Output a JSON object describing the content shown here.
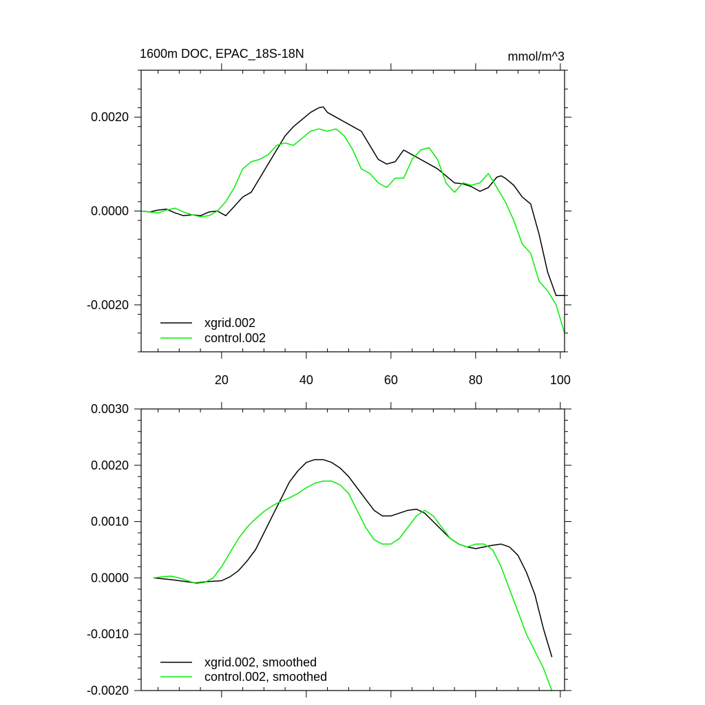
{
  "chart_data": [
    {
      "type": "line",
      "title": "1600m DOC, EPAC_18S-18N",
      "units": "mmol/m^3",
      "xlabel": "",
      "ylabel": "",
      "xlim": [
        1,
        101
      ],
      "ylim": [
        -0.003,
        0.003
      ],
      "xticks": [
        20,
        40,
        60,
        80,
        100
      ],
      "yticks": [
        -0.002,
        0.0,
        0.002
      ],
      "ytick_labels": [
        "-0.0020",
        "0.0000",
        "0.0020"
      ],
      "legend_position": "bottom-left",
      "series": [
        {
          "name": "xgrid.002",
          "color": "#000000",
          "x": [
            1,
            3,
            5,
            7,
            9,
            11,
            13,
            15,
            17,
            19,
            21,
            23,
            25,
            27,
            29,
            31,
            33,
            35,
            37,
            39,
            41,
            43,
            44,
            45,
            47,
            49,
            51,
            53,
            55,
            57,
            59,
            61,
            63,
            65,
            67,
            69,
            71,
            73,
            75,
            77,
            79,
            81,
            83,
            85,
            86,
            87,
            89,
            91,
            93,
            95,
            97,
            99,
            101
          ],
          "y": [
            0,
            -2e-05,
            2e-05,
            4e-05,
            -4e-05,
            -0.0001,
            -8e-05,
            -0.0001,
            -2e-05,
            0,
            -0.0001,
            0.0001,
            0.0003,
            0.0004,
            0.0007,
            0.001,
            0.0013,
            0.0016,
            0.0018,
            0.00195,
            0.0021,
            0.0022,
            0.00222,
            0.0021,
            0.002,
            0.0019,
            0.0018,
            0.0017,
            0.0014,
            0.0011,
            0.001,
            0.00105,
            0.0013,
            0.0012,
            0.0011,
            0.001,
            0.0009,
            0.00075,
            0.0006,
            0.00058,
            0.00052,
            0.00042,
            0.0005,
            0.00072,
            0.00075,
            0.0007,
            0.00055,
            0.0003,
            0.00015,
            -0.0005,
            -0.0013,
            -0.0018,
            -0.0018
          ]
        },
        {
          "name": "control.002",
          "color": "#00ee00",
          "x": [
            1,
            3,
            5,
            7,
            9,
            11,
            13,
            15,
            17,
            19,
            21,
            23,
            25,
            27,
            29,
            31,
            33,
            35,
            37,
            39,
            41,
            43,
            45,
            47,
            49,
            51,
            53,
            55,
            57,
            59,
            61,
            63,
            65,
            67,
            69,
            71,
            73,
            75,
            77,
            79,
            81,
            83,
            85,
            87,
            89,
            91,
            93,
            95,
            97,
            99,
            101
          ],
          "y": [
            0,
            -2e-05,
            -4e-05,
            2e-05,
            6e-05,
            -2e-05,
            -8e-05,
            -0.00012,
            -0.0001,
            0,
            0.0002,
            0.0005,
            0.0009,
            0.00105,
            0.0011,
            0.0012,
            0.0014,
            0.00145,
            0.0014,
            0.00155,
            0.0017,
            0.00175,
            0.0017,
            0.00175,
            0.0016,
            0.0013,
            0.0009,
            0.0008,
            0.0006,
            0.0005,
            0.0007,
            0.0007,
            0.0011,
            0.0013,
            0.00135,
            0.0011,
            0.0006,
            0.0004,
            0.0006,
            0.00055,
            0.0006,
            0.0008,
            0.0005,
            0.0002,
            -0.0002,
            -0.0007,
            -0.0009,
            -0.0015,
            -0.0017,
            -0.002,
            -0.0026
          ]
        }
      ]
    },
    {
      "type": "line",
      "title": "",
      "xlabel": "",
      "ylabel": "",
      "xlim": [
        1,
        101
      ],
      "ylim": [
        -0.002,
        0.003
      ],
      "xticks": [
        20,
        40,
        60,
        80,
        100
      ],
      "yticks": [
        -0.002,
        -0.001,
        0.0,
        0.001,
        0.002,
        0.003
      ],
      "ytick_labels": [
        "-0.0020",
        "-0.0010",
        "0.0000",
        "0.0010",
        "0.0020",
        "0.0030"
      ],
      "legend_position": "bottom-left",
      "series": [
        {
          "name": "xgrid.002, smoothed",
          "color": "#000000",
          "x": [
            4,
            8,
            12,
            14,
            16,
            18,
            20,
            22,
            24,
            26,
            28,
            30,
            32,
            34,
            36,
            38,
            40,
            42,
            44,
            46,
            48,
            50,
            52,
            54,
            56,
            58,
            60,
            62,
            64,
            66,
            68,
            70,
            72,
            74,
            76,
            78,
            80,
            82,
            84,
            86,
            88,
            90,
            92,
            94,
            96,
            98
          ],
          "y": [
            0,
            -3e-05,
            -7e-05,
            -9e-05,
            -7e-05,
            -6e-05,
            -5e-05,
            2e-05,
            0.00013,
            0.0003,
            0.0005,
            0.0008,
            0.0011,
            0.0014,
            0.0017,
            0.0019,
            0.00205,
            0.0021,
            0.0021,
            0.00205,
            0.00195,
            0.0018,
            0.0016,
            0.0014,
            0.0012,
            0.0011,
            0.0011,
            0.00115,
            0.0012,
            0.00122,
            0.00115,
            0.001,
            0.00085,
            0.0007,
            0.0006,
            0.00055,
            0.00052,
            0.00055,
            0.00058,
            0.0006,
            0.00055,
            0.0004,
            0.0001,
            -0.0003,
            -0.0009,
            -0.0014
          ]
        },
        {
          "name": "control.002, smoothed",
          "color": "#00ee00",
          "x": [
            4,
            6,
            8,
            10,
            12,
            14,
            16,
            18,
            20,
            22,
            24,
            26,
            28,
            30,
            32,
            34,
            36,
            38,
            40,
            42,
            44,
            46,
            48,
            50,
            52,
            54,
            56,
            58,
            60,
            62,
            64,
            66,
            68,
            70,
            72,
            74,
            76,
            78,
            80,
            82,
            84,
            86,
            88,
            90,
            92,
            94,
            96,
            98
          ],
          "y": [
            0,
            2e-05,
            3e-05,
            0.0,
            -5e-05,
            -0.0001,
            -8e-05,
            0.0,
            0.0002,
            0.00045,
            0.0007,
            0.0009,
            0.00105,
            0.00118,
            0.00128,
            0.00136,
            0.00142,
            0.0015,
            0.0016,
            0.00168,
            0.00172,
            0.00172,
            0.00165,
            0.0015,
            0.0012,
            0.0009,
            0.00068,
            0.0006,
            0.0006,
            0.0007,
            0.0009,
            0.0011,
            0.0012,
            0.0011,
            0.0009,
            0.0007,
            0.0006,
            0.00055,
            0.0006,
            0.0006,
            0.0005,
            0.0002,
            -0.0002,
            -0.0006,
            -0.001,
            -0.0013,
            -0.0016,
            -0.002
          ]
        }
      ]
    }
  ]
}
